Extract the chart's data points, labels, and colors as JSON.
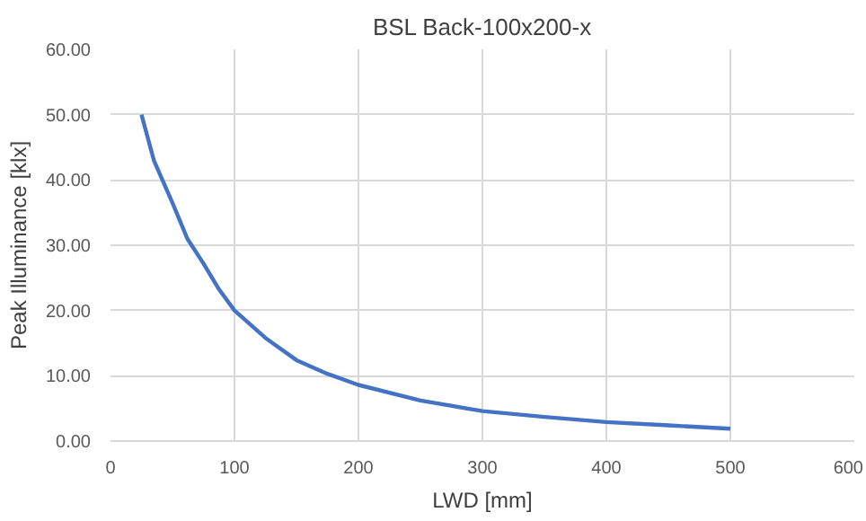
{
  "chart_data": {
    "type": "line",
    "title": "BSL Back-100x200-x",
    "xlabel": "LWD [mm]",
    "ylabel": "Peak Illuminance [klx]",
    "x": [
      25,
      35,
      50,
      62,
      75,
      87,
      100,
      125,
      150,
      175,
      200,
      250,
      300,
      350,
      400,
      450,
      500
    ],
    "series": [
      {
        "color": "#4472c4",
        "values": [
          50,
          43,
          36.5,
          31,
          27.2,
          23.4,
          20,
          15.8,
          12.4,
          10.3,
          8.6,
          6.2,
          4.6,
          3.7,
          2.9,
          2.4,
          1.9
        ]
      }
    ],
    "xlim": [
      0,
      600
    ],
    "xticks": [
      0,
      100,
      200,
      300,
      400,
      500,
      600
    ],
    "ylim": [
      0,
      60
    ],
    "yticks": [
      {
        "value": 0,
        "label": "0.00"
      },
      {
        "value": 10,
        "label": "10.00"
      },
      {
        "value": 20,
        "label": "20.00"
      },
      {
        "value": 30,
        "label": "30.00"
      },
      {
        "value": 40,
        "label": "40.00"
      },
      {
        "value": 50,
        "label": "50.00"
      },
      {
        "value": 60,
        "label": "60.00"
      }
    ],
    "grid": true,
    "marker": "none",
    "line_style": "solid"
  }
}
